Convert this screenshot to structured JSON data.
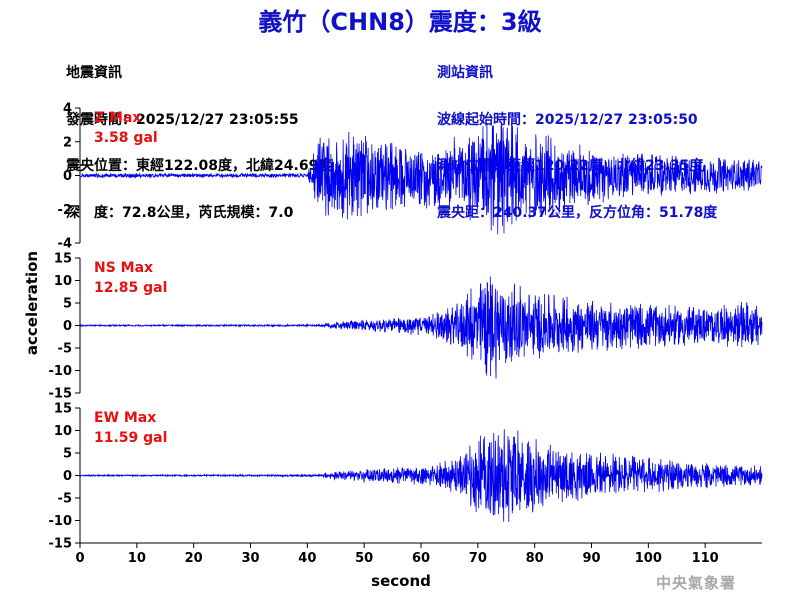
{
  "title": "義竹（CHN8）震度：3級",
  "event_info": {
    "heading": "地震資訊",
    "origin_time": "發震時間：2025/12/27 23:05:55",
    "epicenter": "震央位置：東經122.08度，北緯24.69度",
    "depth_magnitude": "深　度：72.8公里，芮氏規模：7.0"
  },
  "station_info": {
    "heading": "測站資訊",
    "wave_start": "波線起始時間：2025/12/27 23:05:50",
    "station_location": "測站位置：東經120.22度，北緯23.35度",
    "distance_azimuth": "震央距：240.37公里，反方位角：51.78度"
  },
  "watermark": "中央氣象署",
  "colors": {
    "trace": "#0000ee",
    "label": "#e81010",
    "text": "#000000"
  },
  "chart_data": {
    "type": "line",
    "xlabel": "second",
    "ylabel": "acceleration",
    "xlim": [
      0,
      120
    ],
    "x_ticks": [
      0,
      10,
      20,
      30,
      40,
      50,
      60,
      70,
      80,
      90,
      100,
      110
    ],
    "grid": false,
    "panels": [
      {
        "name": "Z",
        "label": "Z Max",
        "max_label": "3.58 gal",
        "max_value": 3.58,
        "ylim": [
          -4,
          4
        ],
        "y_ticks": [
          4,
          2,
          0,
          -2,
          -4
        ],
        "envelope": [
          [
            0,
            0.12
          ],
          [
            40,
            0.12
          ],
          [
            41,
            1.2
          ],
          [
            42,
            2.2
          ],
          [
            44,
            2.5
          ],
          [
            47,
            2.6
          ],
          [
            52,
            2.2
          ],
          [
            58,
            1.8
          ],
          [
            64,
            2.1
          ],
          [
            70,
            2.8
          ],
          [
            74,
            3.58
          ],
          [
            78,
            2.6
          ],
          [
            84,
            2.3
          ],
          [
            90,
            1.7
          ],
          [
            96,
            1.4
          ],
          [
            102,
            1.2
          ],
          [
            110,
            1.1
          ],
          [
            120,
            0.9
          ]
        ]
      },
      {
        "name": "NS",
        "label": "NS Max",
        "max_label": "12.85 gal",
        "max_value": 12.85,
        "ylim": [
          -15,
          15
        ],
        "y_ticks": [
          15,
          10,
          5,
          0,
          -5,
          -10,
          -15
        ],
        "envelope": [
          [
            0,
            0.15
          ],
          [
            42,
            0.2
          ],
          [
            44,
            0.7
          ],
          [
            50,
            1.3
          ],
          [
            56,
            1.8
          ],
          [
            62,
            2.5
          ],
          [
            66,
            4.5
          ],
          [
            69,
            8.5
          ],
          [
            72,
            12.85
          ],
          [
            76,
            9.5
          ],
          [
            80,
            7.5
          ],
          [
            85,
            6.5
          ],
          [
            90,
            5.8
          ],
          [
            95,
            5.5
          ],
          [
            100,
            5.0
          ],
          [
            106,
            4.5
          ],
          [
            112,
            4.2
          ],
          [
            117,
            5.5
          ],
          [
            120,
            4.0
          ]
        ]
      },
      {
        "name": "EW",
        "label": "EW Max",
        "max_label": "11.59 gal",
        "max_value": 11.59,
        "ylim": [
          -15,
          15
        ],
        "y_ticks": [
          15,
          10,
          5,
          0,
          -5,
          -10,
          -15
        ],
        "envelope": [
          [
            0,
            0.15
          ],
          [
            42,
            0.2
          ],
          [
            44,
            0.8
          ],
          [
            50,
            1.4
          ],
          [
            56,
            1.8
          ],
          [
            62,
            2.2
          ],
          [
            67,
            4.5
          ],
          [
            70,
            8.5
          ],
          [
            74,
            11.59
          ],
          [
            78,
            9.5
          ],
          [
            82,
            7.0
          ],
          [
            88,
            5.5
          ],
          [
            94,
            4.8
          ],
          [
            100,
            4.0
          ],
          [
            106,
            3.0
          ],
          [
            112,
            2.6
          ],
          [
            120,
            2.2
          ]
        ]
      }
    ]
  }
}
